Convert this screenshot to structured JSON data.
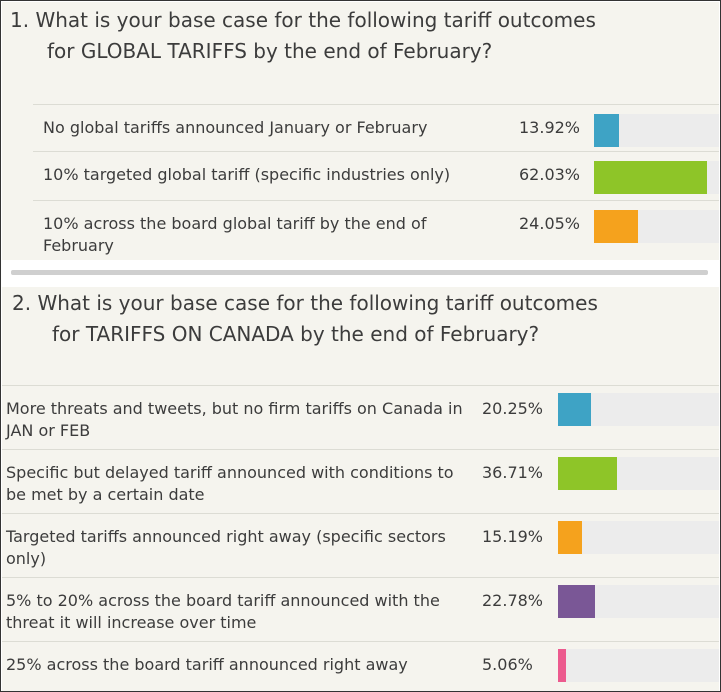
{
  "chart_data": [
    {
      "type": "bar",
      "title_line1": "1. What is your base case for the following tariff outcomes",
      "title_line2": "for GLOBAL TARIFFS by the end of February?",
      "categories": [
        "No global tariffs announced January or February",
        "10% targeted global tariff (specific industries only)",
        "10% across the board global tariff by the end of February"
      ],
      "values": [
        13.92,
        62.03,
        24.05
      ],
      "value_labels": [
        "13.92%",
        "62.03%",
        "24.05%"
      ],
      "colors": [
        "#3ea3c5",
        "#8ec528",
        "#f5a21d"
      ],
      "xlim": [
        0,
        62.03
      ],
      "orientation": "horizontal"
    },
    {
      "type": "bar",
      "title_line1": "2. What is your base case for the following tariff outcomes",
      "title_line2": "for TARIFFS ON CANADA by the end of February?",
      "categories": [
        "More threats and tweets, but no firm tariffs on Canada in JAN or FEB",
        "Specific but delayed tariff announced with conditions to be met by a certain date",
        "Targeted tariffs announced right away (specific sectors only)",
        "5% to 20% across the board tariff announced with the threat it will increase over time",
        "25% across the board tariff announced right away"
      ],
      "values": [
        20.25,
        36.71,
        15.19,
        22.78,
        5.06
      ],
      "value_labels": [
        "20.25%",
        "36.71%",
        "15.19%",
        "22.78%",
        "5.06%"
      ],
      "colors": [
        "#3ea3c5",
        "#8ec528",
        "#f5a21d",
        "#7a5796",
        "#ec5a8e"
      ],
      "xlim": [
        0,
        100
      ],
      "orientation": "horizontal"
    }
  ]
}
